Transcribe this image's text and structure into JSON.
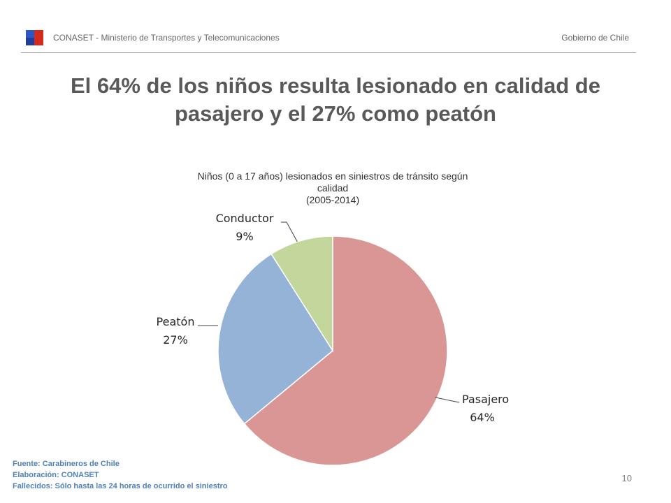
{
  "header": {
    "left_text": "CONASET  - Ministerio de Transportes y Telecomunicaciones",
    "right_text": "Gobierno de Chile",
    "flag_colors": {
      "blue": "#1f3f9a",
      "red": "#d52b1e"
    }
  },
  "title_line1": "El 64% de los niños resulta lesionado en calidad de",
  "title_line2": "pasajero y el 27% como peatón",
  "chart_data": {
    "type": "pie",
    "title_line1": "Niños (0 a 17 años) lesionados en siniestros de tránsito según",
    "title_line2": "calidad",
    "title_line3": "(2005-2014)",
    "slices": [
      {
        "label": "Pasajero",
        "value": 64,
        "display": "64%",
        "color": "#d99694"
      },
      {
        "label": "Peatón",
        "value": 27,
        "display": "27%",
        "color": "#95b3d7"
      },
      {
        "label": "Conductor",
        "value": 9,
        "display": "9%",
        "color": "#c3d69b"
      }
    ],
    "start": "12 o'clock",
    "direction": "clockwise"
  },
  "footer": {
    "line1": "Fuente: Carabineros de Chile",
    "line2": "Elaboración: CONASET",
    "line3": "Fallecidos:  Sólo hasta las 24 horas de ocurrido el siniestro"
  },
  "page_number": "10"
}
